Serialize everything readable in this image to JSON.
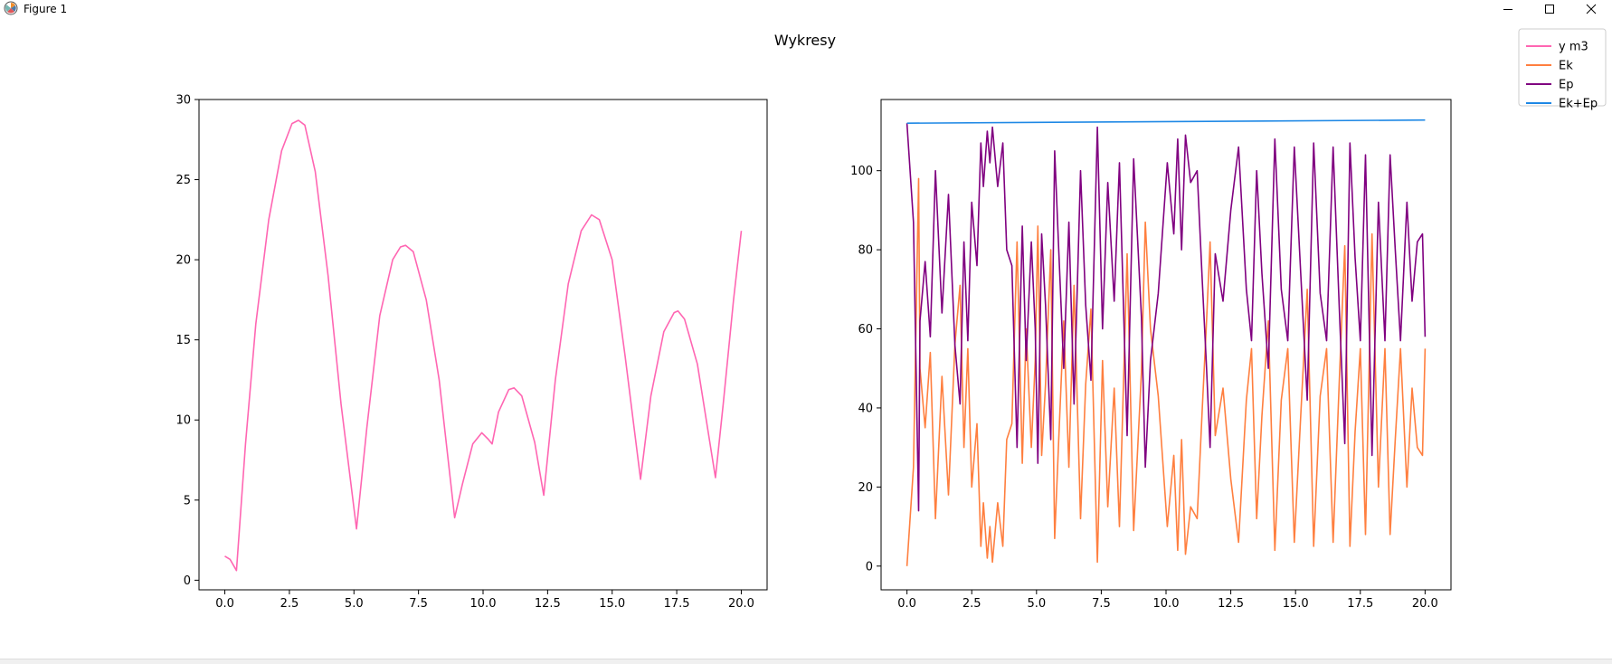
{
  "window": {
    "title": "Figure 1",
    "app_icon": "matplotlib-logo-icon",
    "controls": [
      "minimize-icon",
      "maximize-icon",
      "close-icon"
    ]
  },
  "figure": {
    "suptitle": "Wykresy"
  },
  "legend": {
    "placement": "top-right",
    "entries": [
      {
        "label": "y m3",
        "color": "#ff66b2"
      },
      {
        "label": "Ek",
        "color": "#ff7f3f"
      },
      {
        "label": "Ep",
        "color": "#800080"
      },
      {
        "label": "Ek+Ep",
        "color": "#1e88e5"
      }
    ]
  },
  "chart_data": [
    {
      "type": "line",
      "title": "",
      "xlabel": "",
      "ylabel": "",
      "xlim": [
        -1.0,
        21.0
      ],
      "ylim": [
        -0.6,
        30.0
      ],
      "xticks": [
        0.0,
        2.5,
        5.0,
        7.5,
        10.0,
        12.5,
        15.0,
        17.5,
        20.0
      ],
      "xtick_labels": [
        "0.0",
        "2.5",
        "5.0",
        "7.5",
        "10.0",
        "12.5",
        "15.0",
        "17.5",
        "20.0"
      ],
      "yticks": [
        0,
        5,
        10,
        15,
        20,
        25,
        30
      ],
      "ytick_labels": [
        "0",
        "5",
        "10",
        "15",
        "20",
        "25",
        "30"
      ],
      "grid": false,
      "series": [
        {
          "name": "y m3",
          "color": "#ff66b2",
          "x": [
            0.0,
            0.2,
            0.45,
            0.8,
            1.2,
            1.7,
            2.2,
            2.6,
            2.85,
            3.1,
            3.5,
            4.0,
            4.5,
            5.1,
            5.5,
            6.0,
            6.5,
            6.8,
            7.0,
            7.3,
            7.8,
            8.3,
            8.9,
            9.2,
            9.6,
            9.95,
            10.2,
            10.35,
            10.6,
            11.0,
            11.2,
            11.5,
            12.0,
            12.35,
            12.8,
            13.3,
            13.8,
            14.2,
            14.5,
            15.0,
            15.5,
            16.1,
            16.5,
            17.0,
            17.4,
            17.55,
            17.8,
            18.3,
            19.0,
            19.3,
            19.7,
            20.0
          ],
          "y": [
            1.5,
            1.3,
            0.6,
            8.5,
            16.0,
            22.5,
            26.8,
            28.5,
            28.7,
            28.4,
            25.5,
            19.0,
            11.0,
            3.2,
            9.5,
            16.5,
            20.0,
            20.8,
            20.9,
            20.5,
            17.5,
            12.5,
            3.9,
            6.0,
            8.5,
            9.2,
            8.8,
            8.5,
            10.5,
            11.9,
            12.0,
            11.5,
            8.6,
            5.3,
            12.5,
            18.5,
            21.8,
            22.8,
            22.5,
            20.0,
            14.0,
            6.3,
            11.5,
            15.5,
            16.7,
            16.8,
            16.3,
            13.5,
            6.4,
            11.0,
            17.5,
            21.8
          ]
        }
      ]
    },
    {
      "type": "line",
      "title": "",
      "xlabel": "",
      "ylabel": "",
      "xlim": [
        -1.0,
        21.0
      ],
      "ylim": [
        -6.0,
        118.0
      ],
      "xticks": [
        0.0,
        2.5,
        5.0,
        7.5,
        10.0,
        12.5,
        15.0,
        17.5,
        20.0
      ],
      "xtick_labels": [
        "0.0",
        "2.5",
        "5.0",
        "7.5",
        "10.0",
        "12.5",
        "15.0",
        "17.5",
        "20.0"
      ],
      "yticks": [
        0,
        20,
        40,
        60,
        80,
        100
      ],
      "ytick_labels": [
        "0",
        "20",
        "40",
        "60",
        "80",
        "100"
      ],
      "grid": false,
      "series": [
        {
          "name": "Ek",
          "color": "#ff7f3f",
          "x": [
            0.0,
            0.25,
            0.45,
            0.5,
            0.7,
            0.9,
            1.1,
            1.35,
            1.6,
            1.85,
            2.05,
            2.2,
            2.35,
            2.5,
            2.7,
            2.85,
            2.95,
            3.1,
            3.2,
            3.3,
            3.5,
            3.7,
            3.85,
            4.05,
            4.25,
            4.45,
            4.6,
            4.8,
            4.95,
            5.05,
            5.2,
            5.35,
            5.55,
            5.7,
            5.85,
            6.05,
            6.25,
            6.45,
            6.7,
            6.9,
            7.1,
            7.35,
            7.55,
            7.75,
            8.0,
            8.2,
            8.5,
            8.75,
            9.05,
            9.2,
            9.4,
            9.7,
            10.05,
            10.3,
            10.45,
            10.6,
            10.75,
            10.95,
            11.2,
            11.4,
            11.55,
            11.7,
            11.9,
            12.2,
            12.5,
            12.8,
            13.1,
            13.3,
            13.5,
            13.7,
            13.95,
            14.2,
            14.45,
            14.7,
            14.95,
            15.2,
            15.45,
            15.7,
            15.95,
            16.2,
            16.45,
            16.7,
            16.9,
            17.1,
            17.3,
            17.5,
            17.7,
            17.95,
            18.2,
            18.45,
            18.65,
            18.85,
            19.05,
            19.3,
            19.5,
            19.7,
            19.9,
            20.0
          ],
          "y": [
            0,
            25,
            98,
            50,
            35,
            54,
            12,
            48,
            18,
            56,
            71,
            30,
            55,
            20,
            36,
            5,
            16,
            2,
            10,
            1,
            16,
            5,
            32,
            36,
            82,
            26,
            60,
            30,
            52,
            86,
            28,
            46,
            80,
            7,
            31,
            62,
            25,
            71,
            12,
            46,
            65,
            1,
            52,
            15,
            45,
            10,
            79,
            9,
            49,
            87,
            60,
            43,
            10,
            28,
            4,
            32,
            3,
            15,
            12,
            40,
            60,
            82,
            33,
            45,
            22,
            6,
            42,
            55,
            12,
            38,
            62,
            4,
            42,
            55,
            6,
            38,
            70,
            5,
            43,
            55,
            6,
            49,
            81,
            5,
            34,
            55,
            8,
            84,
            20,
            55,
            8,
            32,
            55,
            20,
            45,
            30,
            28,
            55
          ]
        },
        {
          "name": "Ep",
          "color": "#800080",
          "x": [
            0.0,
            0.25,
            0.45,
            0.5,
            0.7,
            0.9,
            1.1,
            1.35,
            1.6,
            1.85,
            2.05,
            2.2,
            2.35,
            2.5,
            2.7,
            2.85,
            2.95,
            3.1,
            3.2,
            3.3,
            3.5,
            3.7,
            3.85,
            4.05,
            4.25,
            4.45,
            4.6,
            4.8,
            4.95,
            5.05,
            5.2,
            5.35,
            5.55,
            5.7,
            5.85,
            6.05,
            6.25,
            6.45,
            6.7,
            6.9,
            7.1,
            7.35,
            7.55,
            7.75,
            8.0,
            8.2,
            8.5,
            8.75,
            9.05,
            9.2,
            9.4,
            9.7,
            10.05,
            10.3,
            10.45,
            10.6,
            10.75,
            10.95,
            11.2,
            11.4,
            11.55,
            11.7,
            11.9,
            12.2,
            12.5,
            12.8,
            13.1,
            13.3,
            13.5,
            13.7,
            13.95,
            14.2,
            14.45,
            14.7,
            14.95,
            15.2,
            15.45,
            15.7,
            15.95,
            16.2,
            16.45,
            16.7,
            16.9,
            17.1,
            17.3,
            17.5,
            17.7,
            17.95,
            18.2,
            18.45,
            18.65,
            18.85,
            19.05,
            19.3,
            19.5,
            19.7,
            19.9,
            20.0
          ],
          "y": [
            112,
            87,
            14,
            62,
            77,
            58,
            100,
            64,
            94,
            56,
            41,
            82,
            57,
            92,
            76,
            107,
            96,
            110,
            102,
            111,
            96,
            107,
            80,
            76,
            30,
            86,
            52,
            82,
            60,
            26,
            84,
            66,
            32,
            105,
            81,
            50,
            87,
            41,
            100,
            66,
            47,
            111,
            60,
            97,
            67,
            102,
            33,
            103,
            63,
            25,
            52,
            69,
            102,
            84,
            108,
            80,
            109,
            97,
            100,
            72,
            52,
            30,
            79,
            67,
            90,
            106,
            70,
            57,
            100,
            74,
            50,
            108,
            70,
            57,
            106,
            74,
            42,
            107,
            69,
            57,
            106,
            63,
            31,
            107,
            78,
            57,
            104,
            28,
            92,
            57,
            104,
            80,
            57,
            92,
            67,
            82,
            84,
            58
          ]
        },
        {
          "name": "Ek+Ep",
          "color": "#1e88e5",
          "x": [
            0.0,
            20.0
          ],
          "y": [
            112.0,
            112.8
          ]
        }
      ]
    }
  ]
}
